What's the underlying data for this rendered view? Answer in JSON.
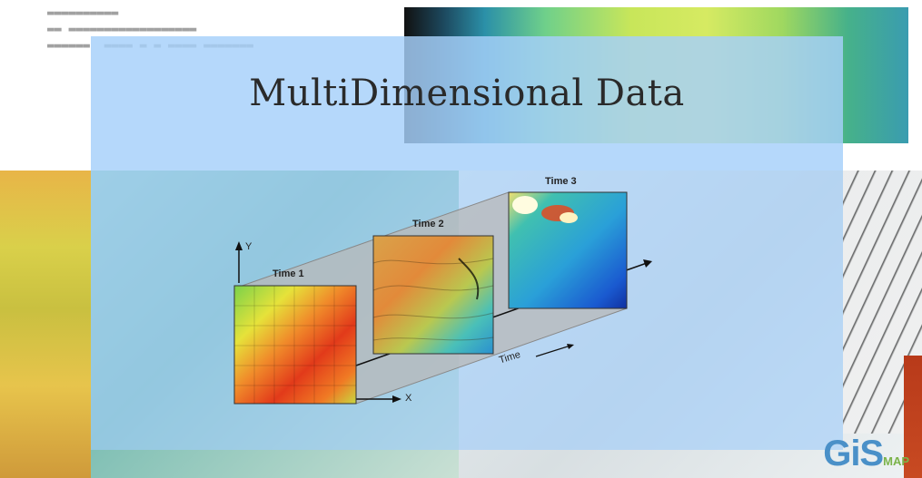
{
  "title": "MultiDimensional Data",
  "frames": [
    {
      "label": "Time 1"
    },
    {
      "label": "Time 2"
    },
    {
      "label": "Time 3"
    }
  ],
  "axes": {
    "y_label": "Y",
    "x_label": "X",
    "time_label": "Time"
  },
  "logo": {
    "main": "GiS",
    "sub": "MAP"
  },
  "colors": {
    "overlay": "#a0cdfa",
    "logo_blue": "#4a90c8",
    "logo_green": "#7bb34a"
  }
}
